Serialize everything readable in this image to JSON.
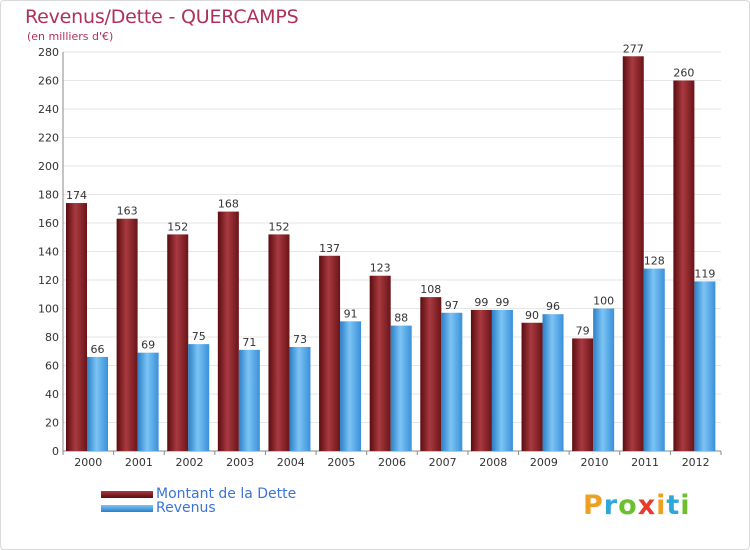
{
  "header": {
    "title": "Revenus/Dette - QUERCAMPS",
    "subtitle": "(en milliers d'€)"
  },
  "legend": {
    "items": [
      {
        "label": "Montant de la Dette",
        "color": "#7a1a1f"
      },
      {
        "label": "Revenus",
        "color": "#3a97e0"
      }
    ]
  },
  "logo": {
    "text": "Proxiti",
    "letters": [
      "P",
      "r",
      "o",
      "x",
      "i",
      "t",
      "i"
    ],
    "colors": [
      "#f0a020",
      "#2fa7d9",
      "#6cbf2f",
      "#e83b2e",
      "#f0a020",
      "#2fa7d9",
      "#6cbf2f"
    ]
  },
  "chart_data": {
    "type": "bar",
    "title": "Revenus/Dette - QUERCAMPS",
    "subtitle": "(en milliers d'€)",
    "categories": [
      "2000",
      "2001",
      "2002",
      "2003",
      "2004",
      "2005",
      "2006",
      "2007",
      "2008",
      "2009",
      "2010",
      "2011",
      "2012"
    ],
    "series": [
      {
        "name": "Montant de la Dette",
        "color": "#7a1a1f",
        "values": [
          174,
          163,
          152,
          168,
          152,
          137,
          123,
          108,
          99,
          90,
          79,
          277,
          260
        ]
      },
      {
        "name": "Revenus",
        "color": "#3a97e0",
        "values": [
          66,
          69,
          75,
          71,
          73,
          91,
          88,
          97,
          99,
          96,
          100,
          128,
          119
        ]
      }
    ],
    "ylim": [
      0,
      280
    ],
    "yticks": [
      0,
      20,
      40,
      60,
      80,
      100,
      120,
      140,
      160,
      180,
      200,
      220,
      240,
      260,
      280
    ],
    "grid": true,
    "legend_position": "bottom-left"
  }
}
